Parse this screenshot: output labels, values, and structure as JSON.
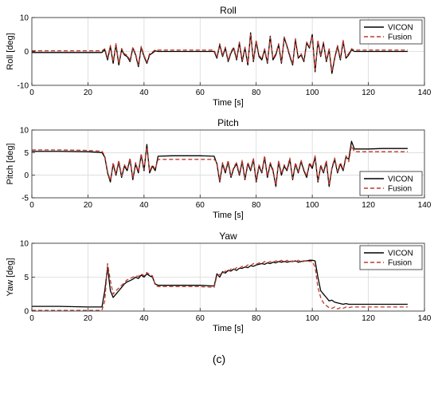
{
  "caption": "(c)",
  "colors": {
    "vicon": "#000000",
    "fusion": "#c0392b",
    "grid": "#d9d9d9"
  },
  "chart_data": [
    {
      "type": "line",
      "title": "Roll",
      "xlabel": "Time [s]",
      "ylabel": "Roll [deg]",
      "xlim": [
        0,
        140
      ],
      "ylim": [
        -10,
        10
      ],
      "xticks": [
        "0",
        "20",
        "40",
        "60",
        "80",
        "100",
        "120",
        "140"
      ],
      "yticks": [
        "-10",
        "0",
        "10"
      ],
      "grid": true,
      "legend": {
        "placement": "top-right",
        "entries": [
          "VICON",
          "Fusion"
        ]
      },
      "series": [
        {
          "name": "VICON",
          "style": "solid",
          "x": [
            0,
            10,
            20,
            25,
            26,
            27,
            28,
            29,
            30,
            31,
            32,
            33,
            34,
            35,
            36,
            37,
            38,
            39,
            40,
            41,
            42,
            43,
            44,
            45,
            50,
            55,
            60,
            65,
            66,
            67,
            68,
            69,
            70,
            71,
            72,
            73,
            74,
            75,
            76,
            77,
            78,
            79,
            80,
            81,
            82,
            83,
            84,
            85,
            86,
            87,
            88,
            89,
            90,
            91,
            92,
            93,
            94,
            95,
            96,
            97,
            98,
            99,
            100,
            101,
            102,
            103,
            104,
            105,
            106,
            107,
            108,
            109,
            110,
            111,
            112,
            113,
            114,
            115,
            120,
            125,
            130,
            134
          ],
          "values": [
            -0.3,
            -0.3,
            -0.3,
            -0.3,
            0.5,
            -2.5,
            1.5,
            -3.5,
            2.0,
            -4.0,
            0.5,
            -1.0,
            -1.5,
            -3.0,
            1.0,
            -1.0,
            -4.5,
            1.2,
            -1.5,
            -3.5,
            -1.0,
            -0.5,
            0.2,
            0.0,
            0.0,
            0.0,
            0.0,
            0.0,
            -2.0,
            2.0,
            -1.5,
            1.0,
            -3.0,
            -0.5,
            1.0,
            -2.5,
            2.5,
            -3.0,
            1.0,
            -4.0,
            5.5,
            -3.0,
            3.0,
            -1.5,
            -2.5,
            0.5,
            -3.5,
            4.5,
            -2.5,
            -1.0,
            2.0,
            -3.5,
            4.0,
            1.5,
            -1.5,
            -4.0,
            3.5,
            -2.0,
            -1.0,
            -3.0,
            2.5,
            1.0,
            5.0,
            -6.0,
            3.0,
            -1.5,
            2.5,
            -3.0,
            0.5,
            -6.5,
            -2.0,
            1.5,
            -2.5,
            3.0,
            -2.0,
            -1.0,
            0.5,
            0.0,
            0.0,
            0.0,
            0.0,
            0.0
          ]
        },
        {
          "name": "Fusion",
          "style": "dashed",
          "x": [
            0,
            10,
            20,
            25,
            26,
            27,
            28,
            29,
            30,
            31,
            32,
            33,
            34,
            35,
            36,
            37,
            38,
            39,
            40,
            41,
            42,
            43,
            44,
            45,
            50,
            55,
            60,
            65,
            66,
            67,
            68,
            69,
            70,
            71,
            72,
            73,
            74,
            75,
            76,
            77,
            78,
            79,
            80,
            81,
            82,
            83,
            84,
            85,
            86,
            87,
            88,
            89,
            90,
            91,
            92,
            93,
            94,
            95,
            96,
            97,
            98,
            99,
            100,
            101,
            102,
            103,
            104,
            105,
            106,
            107,
            108,
            109,
            110,
            111,
            112,
            113,
            114,
            115,
            120,
            125,
            130,
            134
          ],
          "values": [
            0.2,
            0.2,
            0.2,
            0.2,
            0.8,
            -2.0,
            1.8,
            -3.0,
            2.3,
            -3.6,
            0.9,
            -0.7,
            -1.1,
            -2.6,
            1.3,
            -0.7,
            -4.0,
            1.5,
            -1.2,
            -3.1,
            -0.6,
            -0.2,
            0.5,
            0.4,
            0.4,
            0.4,
            0.4,
            0.4,
            -1.6,
            2.3,
            -1.1,
            1.3,
            -2.6,
            -0.1,
            1.3,
            -2.1,
            2.8,
            -2.6,
            1.3,
            -3.6,
            5.0,
            -2.6,
            3.3,
            -1.1,
            -2.1,
            0.8,
            -3.1,
            4.2,
            -2.1,
            -0.6,
            2.3,
            -3.1,
            4.3,
            1.8,
            -1.1,
            -3.6,
            3.8,
            -1.6,
            -0.6,
            -2.6,
            2.8,
            1.3,
            4.6,
            -5.5,
            3.3,
            -1.1,
            2.8,
            -2.6,
            0.8,
            -6.0,
            -1.6,
            1.8,
            -2.1,
            3.3,
            -1.6,
            -0.6,
            0.8,
            0.4,
            0.4,
            0.4,
            0.4,
            0.4
          ]
        }
      ]
    },
    {
      "type": "line",
      "title": "Pitch",
      "xlabel": "Time [s]",
      "ylabel": "Pitch [deg]",
      "xlim": [
        0,
        140
      ],
      "ylim": [
        -5,
        10
      ],
      "xticks": [
        "0",
        "20",
        "40",
        "60",
        "80",
        "100",
        "120",
        "140"
      ],
      "yticks": [
        "-5",
        "0",
        "5",
        "10"
      ],
      "grid": true,
      "legend": {
        "placement": "bottom-right",
        "entries": [
          "VICON",
          "Fusion"
        ]
      },
      "series": [
        {
          "name": "VICON",
          "style": "solid",
          "x": [
            0,
            10,
            20,
            25,
            26,
            27,
            28,
            29,
            30,
            31,
            32,
            33,
            34,
            35,
            36,
            37,
            38,
            39,
            40,
            41,
            42,
            43,
            44,
            45,
            50,
            55,
            60,
            65,
            66,
            67,
            68,
            69,
            70,
            71,
            72,
            73,
            74,
            75,
            76,
            77,
            78,
            79,
            80,
            81,
            82,
            83,
            84,
            85,
            86,
            87,
            88,
            89,
            90,
            91,
            92,
            93,
            94,
            95,
            96,
            97,
            98,
            99,
            100,
            101,
            102,
            103,
            104,
            105,
            106,
            107,
            108,
            109,
            110,
            111,
            112,
            113,
            114,
            115,
            120,
            125,
            130,
            134
          ],
          "values": [
            5.3,
            5.3,
            5.2,
            5.0,
            4.0,
            0.5,
            -1.5,
            2.5,
            0.0,
            3.0,
            -0.5,
            2.0,
            1.0,
            3.5,
            -1.0,
            2.5,
            0.5,
            4.5,
            1.0,
            6.8,
            0.5,
            2.0,
            1.0,
            4.2,
            4.3,
            4.3,
            4.3,
            4.2,
            2.5,
            -1.5,
            2.5,
            0.5,
            3.0,
            -0.5,
            1.5,
            2.5,
            0.0,
            3.0,
            -1.0,
            2.5,
            1.0,
            3.5,
            -1.5,
            2.0,
            0.5,
            4.0,
            -0.5,
            2.5,
            1.0,
            -2.5,
            3.0,
            0.0,
            2.0,
            1.0,
            3.5,
            -1.0,
            2.5,
            0.5,
            3.0,
            1.0,
            -0.5,
            2.5,
            1.5,
            4.0,
            -1.5,
            2.0,
            0.5,
            3.0,
            -2.5,
            1.5,
            3.5,
            0.5,
            2.5,
            1.0,
            4.0,
            3.5,
            7.5,
            5.8,
            5.8,
            5.9,
            5.9,
            5.9
          ]
        },
        {
          "name": "Fusion",
          "style": "dashed",
          "x": [
            0,
            10,
            20,
            25,
            26,
            27,
            28,
            29,
            30,
            31,
            32,
            33,
            34,
            35,
            36,
            37,
            38,
            39,
            40,
            41,
            42,
            43,
            44,
            45,
            50,
            55,
            60,
            65,
            66,
            67,
            68,
            69,
            70,
            71,
            72,
            73,
            74,
            75,
            76,
            77,
            78,
            79,
            80,
            81,
            82,
            83,
            84,
            85,
            86,
            87,
            88,
            89,
            90,
            91,
            92,
            93,
            94,
            95,
            96,
            97,
            98,
            99,
            100,
            101,
            102,
            103,
            104,
            105,
            106,
            107,
            108,
            109,
            110,
            111,
            112,
            113,
            114,
            115,
            120,
            125,
            130,
            134
          ],
          "values": [
            5.6,
            5.6,
            5.5,
            5.3,
            4.3,
            0.8,
            -1.2,
            2.8,
            0.3,
            3.3,
            -0.2,
            2.3,
            1.3,
            3.8,
            -0.7,
            2.8,
            0.8,
            4.8,
            1.3,
            6.2,
            0.8,
            2.3,
            1.3,
            3.5,
            3.5,
            3.5,
            3.5,
            3.5,
            2.8,
            -1.2,
            2.8,
            0.8,
            3.3,
            -0.2,
            1.8,
            2.8,
            0.3,
            3.3,
            -0.7,
            2.8,
            1.3,
            3.8,
            -1.2,
            2.3,
            0.8,
            4.3,
            -0.2,
            2.8,
            1.3,
            -2.2,
            3.3,
            0.3,
            2.3,
            1.3,
            3.8,
            -0.7,
            2.8,
            0.8,
            3.3,
            1.3,
            -0.2,
            2.8,
            1.8,
            4.3,
            -1.2,
            2.3,
            0.8,
            3.3,
            -2.2,
            1.8,
            3.8,
            0.8,
            2.8,
            1.3,
            4.3,
            3.0,
            6.5,
            5.2,
            5.2,
            5.2,
            5.2,
            5.2
          ]
        }
      ]
    },
    {
      "type": "line",
      "title": "Yaw",
      "xlabel": "Time [s]",
      "ylabel": "Yaw [deg]",
      "xlim": [
        0,
        140
      ],
      "ylim": [
        0,
        10
      ],
      "xticks": [
        "0",
        "20",
        "40",
        "60",
        "80",
        "100",
        "120",
        "140"
      ],
      "yticks": [
        "0",
        "5",
        "10"
      ],
      "grid": true,
      "legend": {
        "placement": "top-right",
        "entries": [
          "VICON",
          "Fusion"
        ]
      },
      "series": [
        {
          "name": "VICON",
          "style": "solid",
          "x": [
            0,
            10,
            20,
            25,
            26,
            27,
            28,
            29,
            30,
            31,
            32,
            33,
            34,
            35,
            36,
            37,
            38,
            39,
            40,
            41,
            42,
            43,
            44,
            45,
            50,
            55,
            60,
            65,
            66,
            67,
            68,
            69,
            70,
            71,
            72,
            73,
            74,
            75,
            76,
            77,
            78,
            79,
            80,
            81,
            82,
            83,
            84,
            85,
            86,
            87,
            88,
            89,
            90,
            91,
            92,
            93,
            94,
            95,
            96,
            97,
            98,
            99,
            100,
            101,
            102,
            103,
            104,
            105,
            106,
            107,
            108,
            109,
            110,
            111,
            112,
            113,
            114,
            115,
            120,
            125,
            130,
            134
          ],
          "values": [
            0.7,
            0.7,
            0.6,
            0.6,
            3.0,
            6.5,
            3.0,
            2.0,
            2.5,
            3.0,
            3.5,
            4.0,
            4.3,
            4.5,
            4.7,
            5.0,
            4.8,
            5.3,
            5.0,
            5.5,
            5.2,
            5.0,
            4.0,
            3.8,
            3.8,
            3.8,
            3.8,
            3.7,
            5.5,
            5.0,
            5.8,
            5.6,
            6.0,
            5.9,
            6.2,
            6.0,
            6.3,
            6.3,
            6.5,
            6.4,
            6.7,
            6.6,
            6.8,
            6.9,
            7.0,
            6.9,
            7.1,
            7.0,
            7.2,
            7.1,
            7.3,
            7.2,
            7.3,
            7.2,
            7.3,
            7.3,
            7.4,
            7.2,
            7.3,
            7.4,
            7.4,
            7.5,
            7.5,
            7.4,
            5.0,
            3.0,
            2.5,
            2.0,
            1.5,
            1.6,
            1.3,
            1.2,
            1.1,
            1.0,
            1.1,
            1.0,
            1.0,
            1.0,
            1.0,
            1.0,
            1.0,
            1.0
          ]
        },
        {
          "name": "Fusion",
          "style": "dashed",
          "x": [
            0,
            10,
            20,
            25,
            26,
            27,
            28,
            29,
            30,
            31,
            32,
            33,
            34,
            35,
            36,
            37,
            38,
            39,
            40,
            41,
            42,
            43,
            44,
            45,
            50,
            55,
            60,
            65,
            66,
            67,
            68,
            69,
            70,
            71,
            72,
            73,
            74,
            75,
            76,
            77,
            78,
            79,
            80,
            81,
            82,
            83,
            84,
            85,
            86,
            87,
            88,
            89,
            90,
            91,
            92,
            93,
            94,
            95,
            96,
            97,
            98,
            99,
            100,
            101,
            102,
            103,
            104,
            105,
            106,
            107,
            108,
            109,
            110,
            111,
            112,
            113,
            114,
            115,
            120,
            125,
            130,
            134
          ],
          "values": [
            0.1,
            0.1,
            0.1,
            0.1,
            1.5,
            7.0,
            4.5,
            2.5,
            3.0,
            3.4,
            3.8,
            4.2,
            4.6,
            4.8,
            5.0,
            5.2,
            5.1,
            5.5,
            5.2,
            5.7,
            5.4,
            5.2,
            3.8,
            3.6,
            3.6,
            3.6,
            3.6,
            3.5,
            5.2,
            5.4,
            5.5,
            5.9,
            5.8,
            6.2,
            6.1,
            6.4,
            6.3,
            6.6,
            6.5,
            6.8,
            6.7,
            7.0,
            6.9,
            7.1,
            7.0,
            7.3,
            7.1,
            7.3,
            7.2,
            7.4,
            7.3,
            7.5,
            7.2,
            7.5,
            7.3,
            7.4,
            7.2,
            7.5,
            7.3,
            7.3,
            7.5,
            7.3,
            7.3,
            6.5,
            3.5,
            2.0,
            1.2,
            0.8,
            0.5,
            0.4,
            0.6,
            0.3,
            0.5,
            0.4,
            0.6,
            0.5,
            0.6,
            0.6,
            0.6,
            0.6,
            0.6,
            0.6
          ]
        }
      ]
    }
  ]
}
